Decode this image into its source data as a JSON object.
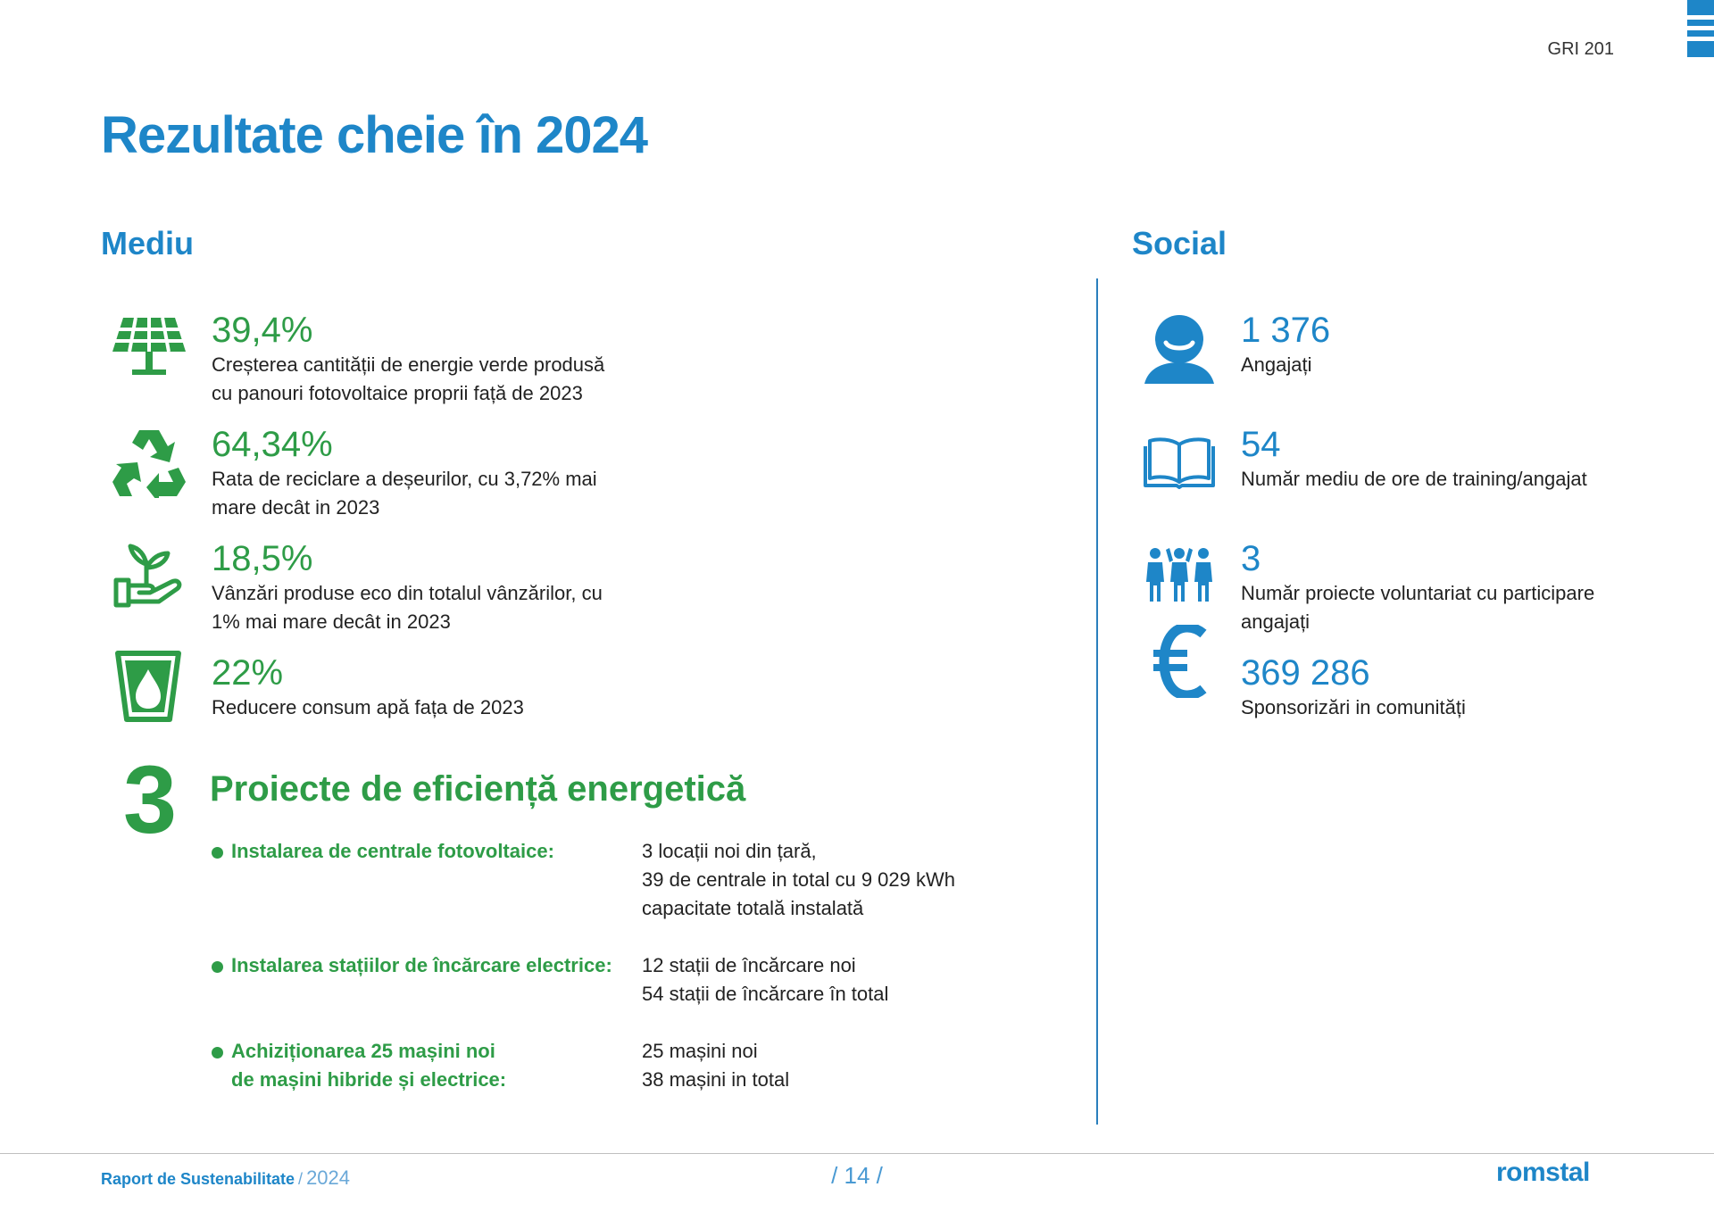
{
  "header": {
    "gri_code": "GRI 201",
    "title": "Rezultate cheie în 2024"
  },
  "colors": {
    "blue": "#1e86c8",
    "green": "#2e9c47"
  },
  "environment": {
    "title": "Mediu",
    "items": [
      {
        "icon": "solar-panel-icon",
        "value": "39,4%",
        "desc_lines": [
          "Creșterea cantității de energie verde produsă",
          "cu panouri fotovoltaice proprii față de 2023"
        ]
      },
      {
        "icon": "recycle-icon",
        "value": "64,34%",
        "desc_lines": [
          "Rata de reciclare a deșeurilor, cu 3,72% mai",
          "mare decât in 2023"
        ]
      },
      {
        "icon": "plant-hand-icon",
        "value": "18,5%",
        "desc_lines": [
          "Vânzări produse eco din totalul vânzărilor, cu",
          "1% mai mare decât in 2023"
        ]
      },
      {
        "icon": "water-drop-icon",
        "value": "22%",
        "desc_lines": [
          "Reducere consum apă fața de 2023"
        ]
      }
    ]
  },
  "social": {
    "title": "Social",
    "items": [
      {
        "icon": "employee-icon",
        "value": "1 376",
        "desc_lines": [
          "Angajați"
        ]
      },
      {
        "icon": "book-icon",
        "value": "54",
        "desc_lines": [
          "Număr mediu de ore de training/angajat"
        ]
      },
      {
        "icon": "volunteers-icon",
        "value": "3",
        "desc_lines": [
          "Număr proiecte voluntariat cu participare",
          "angajați"
        ]
      },
      {
        "icon": "euro-icon",
        "value": "369 286",
        "desc_lines": [
          "Sponsorizări in comunități"
        ]
      }
    ]
  },
  "projects": {
    "count": "3",
    "title": "Proiecte de eficiență energetică",
    "items": [
      {
        "label_lines": [
          "Instalarea de centrale fotovoltaice:"
        ],
        "detail_lines": [
          "3 locații noi din țară,",
          "39 de centrale in total cu 9 029 kWh",
          "capacitate totală instalată"
        ]
      },
      {
        "label_lines": [
          "Instalarea stațiilor de încărcare electrice:"
        ],
        "detail_lines": [
          "12 stații de încărcare noi",
          "54 stații de încărcare în total"
        ]
      },
      {
        "label_lines": [
          "Achiziționarea 25 mașini noi",
          "de mașini hibride și electrice:"
        ],
        "detail_lines": [
          "25 mașini noi",
          "38 mașini in total"
        ]
      }
    ]
  },
  "footer": {
    "report_name": "Raport de Sustenabilitate",
    "separator": "/",
    "year": "2024",
    "page_number": "/ 14 /",
    "brand": "romstal"
  }
}
